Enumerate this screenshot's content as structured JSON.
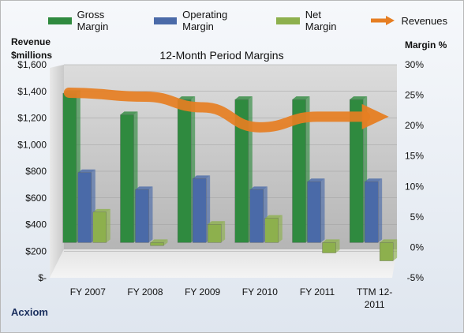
{
  "chart_data": {
    "type": "bar",
    "title": "12-Month Period Margins",
    "categories": [
      "FY 2007",
      "FY 2008",
      "FY 2009",
      "FY 2010",
      "FY 2011",
      "TTM 12-2011"
    ],
    "category_lines": [
      [
        "FY 2007"
      ],
      [
        "FY 2008"
      ],
      [
        "FY 2009"
      ],
      [
        "FY 2010"
      ],
      [
        "FY 2011"
      ],
      [
        "TTM 12-",
        "2011"
      ]
    ],
    "series": [
      {
        "name": "Gross Margin",
        "axis": "right",
        "color": "#2f8a3f",
        "values": [
          24.5,
          21.0,
          23.5,
          23.5,
          23.5,
          23.5
        ]
      },
      {
        "name": "Operating Margin",
        "axis": "right",
        "color": "#4a6aa8",
        "values": [
          11.5,
          8.7,
          10.5,
          8.7,
          10.0,
          10.0
        ]
      },
      {
        "name": "Net Margin",
        "axis": "right",
        "color": "#8db04d",
        "values": [
          5.0,
          -0.5,
          3.0,
          4.0,
          -1.7,
          -3.0
        ]
      },
      {
        "name": "Revenues",
        "axis": "left",
        "type": "line",
        "color": "#e67e22",
        "values": [
          1390,
          1360,
          1280,
          1130,
          1210,
          1210
        ]
      }
    ],
    "left_axis": {
      "label": [
        "Revenue",
        "$millions"
      ],
      "ticks": [
        "$-",
        "$200",
        "$400",
        "$600",
        "$800",
        "$1,000",
        "$1,200",
        "$1,400",
        "$1,600"
      ],
      "range": [
        0,
        1600
      ]
    },
    "right_axis": {
      "label": "Margin %",
      "ticks": [
        "-5%",
        "0%",
        "5%",
        "10%",
        "15%",
        "20%",
        "25%",
        "30%"
      ],
      "range": [
        -5,
        30
      ]
    },
    "grid": true,
    "legend": "top"
  },
  "footer": {
    "company": "Acxiom"
  }
}
